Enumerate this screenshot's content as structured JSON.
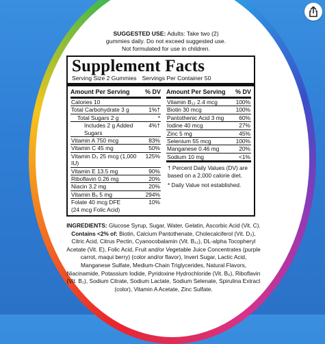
{
  "suggested_use": {
    "label": "SUGGESTED USE:",
    "line1": "Adults: Take two (2)",
    "line2": "gummies daily. Do not exceed suggested use.",
    "line3": "Not formulated for use in children."
  },
  "facts": {
    "title": "Supplement Facts",
    "serving_size": "Serving Size 2 Gummies",
    "servings_per_container": "Servings Per Container 50",
    "col_header_amount": "Amount Per Serving",
    "col_header_dv": "% DV",
    "left_rows": [
      {
        "name": "Calories 10",
        "dv": ""
      },
      {
        "name": "Total Carbohydrate 3 g",
        "dv": "1%†"
      },
      {
        "name": "Total Sugars 2 g",
        "dv": "*"
      },
      {
        "name": "Includes 2 g Added Sugars",
        "dv": "4%†"
      },
      {
        "name": "Vitamin A 750 mcg",
        "dv": "83%"
      },
      {
        "name": "Vitamin C 45 mg",
        "dv": "50%"
      },
      {
        "name": "Vitamin D₃ 25 mcg (1,000 IU)",
        "dv": "125%"
      },
      {
        "name": "Vitamin E 13.5 mg",
        "dv": "90%"
      },
      {
        "name": "Riboflavin 0.26 mg",
        "dv": "20%"
      },
      {
        "name": "Niacin 3.2 mg",
        "dv": "20%"
      },
      {
        "name": "Vitamin B₆ 5 mg",
        "dv": "294%"
      },
      {
        "name": "Folate 40 mcg DFE\n (24 mcg Folic Acid)",
        "dv": "10%"
      }
    ],
    "right_rows": [
      {
        "name": "Vitamin B₁₂ 2.4 mcg",
        "dv": "100%"
      },
      {
        "name": "Biotin 30 mcg",
        "dv": "100%"
      },
      {
        "name": "Pantothenic Acid 3 mg",
        "dv": "60%"
      },
      {
        "name": "Iodine 40 mcg",
        "dv": "27%"
      },
      {
        "name": "Zinc 5 mg",
        "dv": "45%"
      },
      {
        "name": "Selenium 55 mcg",
        "dv": "100%"
      },
      {
        "name": "Manganese 0.46 mg",
        "dv": "20%"
      },
      {
        "name": "Sodium 10 mg",
        "dv": "<1%"
      }
    ],
    "footnote_percent": "† Percent Daily Values (DV) are based on a 2,000 calorie diet.",
    "footnote_daily": "* Daily Value not established."
  },
  "ingredients": {
    "label": "INGREDIENTS:",
    "text1": "Glucose Syrup, Sugar, Water, Gelatin, Ascorbic Acid (Vit. C).",
    "contains_label": "Contains <2% of:",
    "text2": "Biotin, Calcium Pantothenate, Cholecalciferol (Vit. D₃), Citric Acid, Citrus Pectin, Cyanocobalamin (Vit. B₁₂), DL-alpha Tocopheryl Acetate (Vit. E), Folic Acid, Fruit and/or Vegetable Juice Concentrates (purple carrot, maqui berry) (color and/or flavor), Invert Sugar, Lactic Acid, Manganese Sulfate, Medium-Chain Triglycerides, Natural Flavors, Niacinamide, Potassium Iodide, Pyridoxine Hydrochloride (Vit. B₆), Riboflavin (Vit. B₂), Sodium Citrate, Sodium Lactate, Sodium Selenate, Spirulina Extract (color), Vitamin A Acetate, Zinc Sulfate."
  },
  "icons": {
    "share": "share-icon"
  },
  "colors": {
    "background": "#2f7fd6",
    "panel_border": "#111111"
  }
}
